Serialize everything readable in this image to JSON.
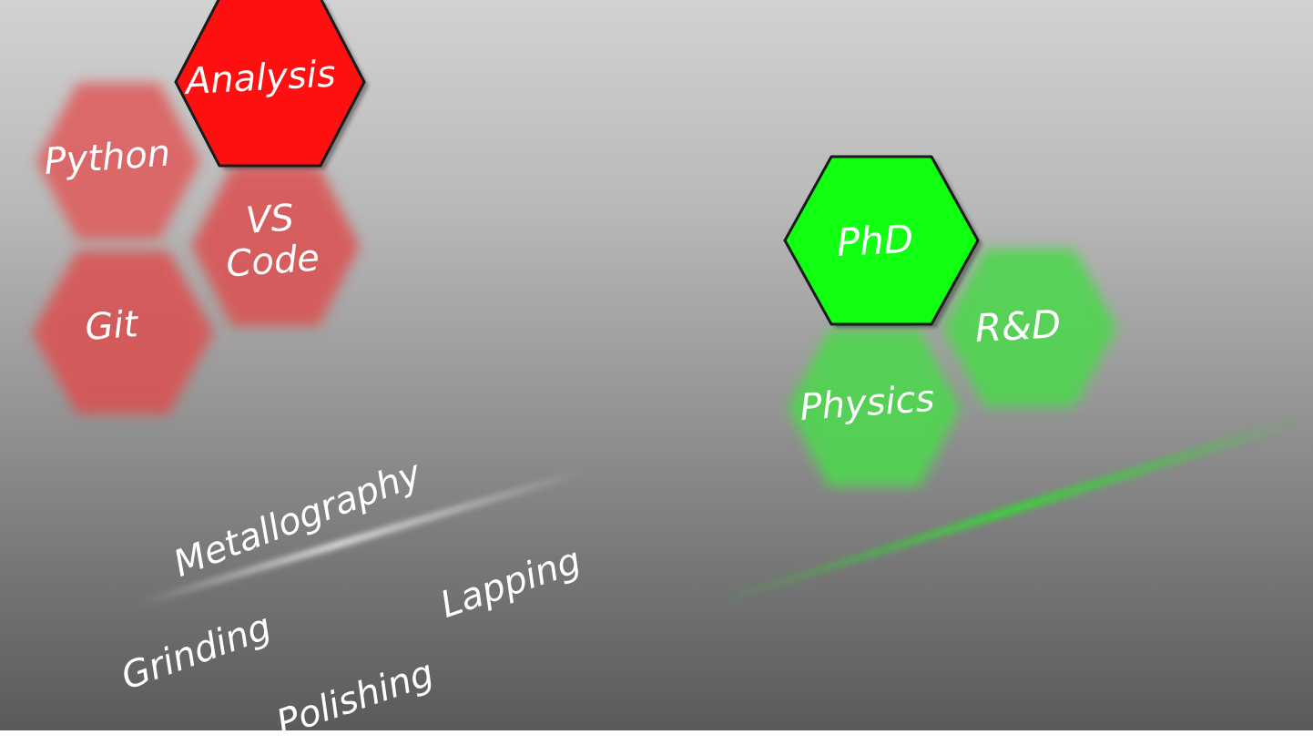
{
  "colors": {
    "red_accent": "#ff1010",
    "red_blurred": "#e05050",
    "green_accent": "#11ff11",
    "green_blurred": "#4fd64f",
    "label": "#ffffff"
  },
  "red_cluster": {
    "focus": "Analysis",
    "blurred": [
      "Python",
      "VS",
      "Code",
      "Git"
    ]
  },
  "green_cluster": {
    "focus": "PhD",
    "blurred": [
      "R&D",
      "Physics"
    ]
  },
  "floating_words": [
    "Metallography",
    "Lapping",
    "Grinding",
    "Polishing"
  ]
}
